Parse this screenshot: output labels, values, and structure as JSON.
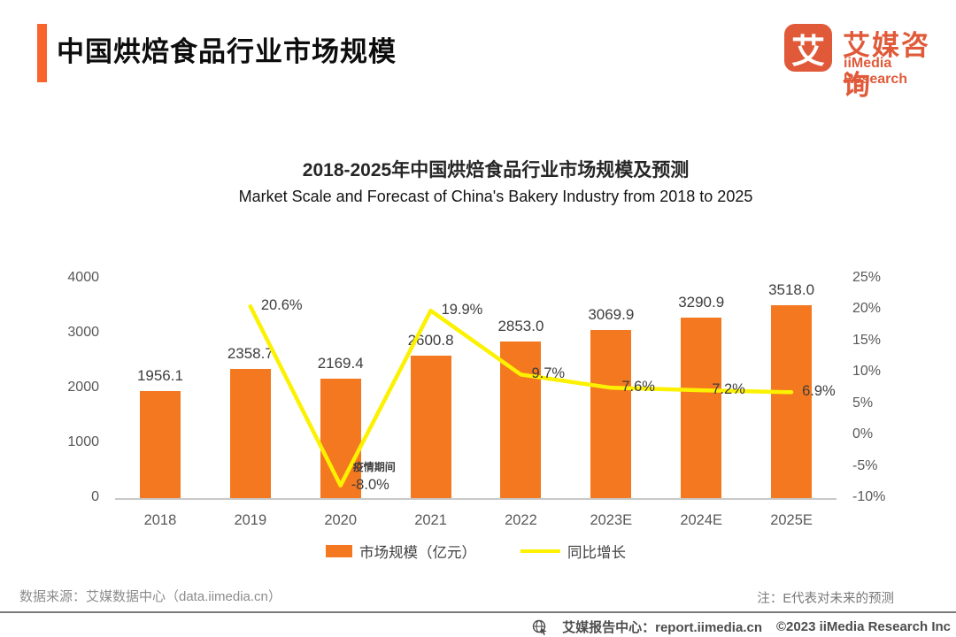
{
  "header": {
    "title": "中国烘焙食品行业市场规模",
    "logo": {
      "glyph": "艾",
      "name_cn": "艾媒咨询",
      "name_en": "iiMedia Research"
    }
  },
  "chart_data": {
    "type": "bar",
    "title": "2018-2025年中国烘焙食品行业市场规模及预测",
    "subtitle": "Market Scale and Forecast of China's Bakery Industry from 2018 to 2025",
    "categories": [
      "2018",
      "2019",
      "2020",
      "2021",
      "2022",
      "2023E",
      "2024E",
      "2025E"
    ],
    "series": [
      {
        "name": "市场规模（亿元）",
        "type": "bar",
        "color": "#F4781F",
        "values": [
          1956.1,
          2358.7,
          2169.4,
          2600.8,
          2853.0,
          3069.9,
          3290.9,
          3518.0
        ],
        "value_labels": [
          "1956.1",
          "2358.7",
          "2169.4",
          "2600.8",
          "2853.0",
          "3069.9",
          "3290.9",
          "3518.0"
        ]
      },
      {
        "name": "同比增长",
        "type": "line",
        "color": "#FCF100",
        "values": [
          null,
          20.6,
          -8.0,
          19.9,
          9.7,
          7.6,
          7.2,
          6.9
        ],
        "value_labels": [
          null,
          "20.6%",
          "-8.0%",
          "19.9%",
          "9.7%",
          "7.6%",
          "7.2%",
          "6.9%"
        ]
      }
    ],
    "left_axis": {
      "min": 0,
      "max": 4000,
      "ticks": [
        "4000",
        "3000",
        "2000",
        "1000",
        "0"
      ]
    },
    "right_axis": {
      "min": -10,
      "max": 25,
      "ticks": [
        "25%",
        "20%",
        "15%",
        "10%",
        "5%",
        "0%",
        "-5%",
        "-10%"
      ]
    },
    "annotations": [
      {
        "text": "疫情期间",
        "category": "2020"
      }
    ],
    "legend_position": "bottom",
    "grid": false
  },
  "footer": {
    "source": "数据来源：艾媒数据中心（data.iimedia.cn）",
    "note": "注：E代表对未来的预测",
    "report_center": "艾媒报告中心：report.iimedia.cn",
    "copyright": "©2023 iiMedia Research Inc"
  },
  "colors": {
    "accent": "#F9632C",
    "bar": "#F4781F",
    "line": "#FCF100",
    "logo": "#E05A3A"
  }
}
